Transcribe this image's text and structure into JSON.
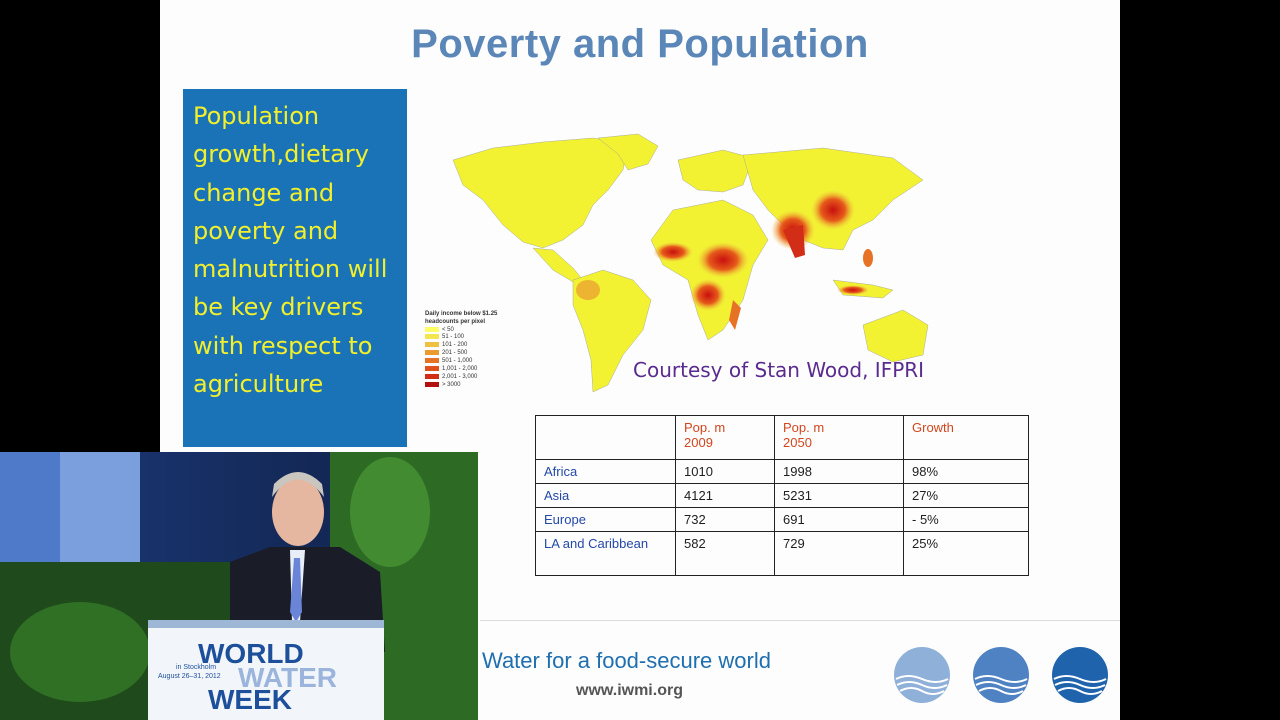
{
  "slide": {
    "title": "Poverty and Population",
    "key_message": "Population growth,dietary change and poverty and malnutrition will be key drivers with respect to agriculture",
    "map": {
      "credit": "Courtesy of Stan Wood, IFPRI",
      "legend_title_line1": "Daily income below $1.25",
      "legend_title_line2": "headcounts per pixel",
      "legend_items": [
        {
          "label": "< 50",
          "color": "#ffff66"
        },
        {
          "label": "51 - 100",
          "color": "#f3e650"
        },
        {
          "label": "101 - 200",
          "color": "#f0c040"
        },
        {
          "label": "201 - 500",
          "color": "#eb9a30"
        },
        {
          "label": "501 - 1,000",
          "color": "#e67325"
        },
        {
          "label": "1,001 - 2,000",
          "color": "#e0501d"
        },
        {
          "label": "2,001 - 3,000",
          "color": "#d22d16"
        },
        {
          "label": "> 3000",
          "color": "#b31010"
        }
      ]
    },
    "table": {
      "headers": [
        [
          "",
          ""
        ],
        [
          "Pop. m",
          "2009"
        ],
        [
          "Pop. m",
          "2050"
        ],
        [
          "Growth",
          ""
        ]
      ],
      "rows": [
        {
          "region": "Africa",
          "pop2009": "1010",
          "pop2050": "1998",
          "growth": "98%"
        },
        {
          "region": "Asia",
          "pop2009": "4121",
          "pop2050": "5231",
          "growth": "27%"
        },
        {
          "region": "Europe",
          "pop2009": "732",
          "pop2050": "691",
          "growth": "- 5%"
        },
        {
          "region": "LA and Caribbean",
          "pop2009": "582",
          "pop2050": "729",
          "growth": "25%"
        }
      ]
    },
    "footer": {
      "tagline": "Water for a food-secure world",
      "url": "www.iwmi.org"
    }
  },
  "video_inset": {
    "podium_line1": "WORLD",
    "podium_line2": "WATER",
    "podium_line3": "WEEK",
    "podium_small1": "in Stockholm",
    "podium_small2": "August 26–31, 2012"
  },
  "colors": {
    "title": "#5b86b8",
    "box_bg": "#1a73b6",
    "box_text": "#f2ef2c",
    "header_text": "#d2461e",
    "region_text": "#2248a8",
    "tagline": "#1f6fb0",
    "logo": "#2f6fb5"
  }
}
